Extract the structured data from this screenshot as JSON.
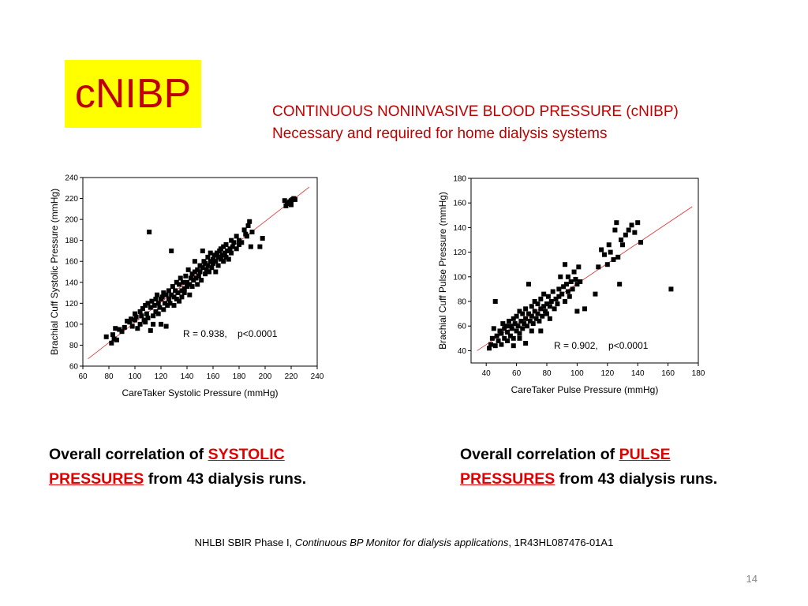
{
  "slide": {
    "title": "cNIBP",
    "subtitle_line1": "CONTINUOUS NONINVASIVE BLOOD PRESSURE (cNIBP)",
    "subtitle_line2": "Necessary and required for home dialysis systems",
    "caption_left": {
      "pre": "Overall correlation of ",
      "hl1": "SYSTOLIC",
      "hl2": "PRESSURES",
      "post": " from 43 dialysis runs."
    },
    "caption_right": {
      "pre": "Overall correlation of ",
      "hl1": "PULSE",
      "hl2": "PRESSURES",
      "post": " from 43 dialysis runs."
    },
    "footer": {
      "pre": "NHLBI SBIR Phase I, ",
      "italic": "Continuous BP Monitor for dialysis applications",
      "post": ", 1R43HL087476-01A1"
    },
    "page_number": "14"
  },
  "chart_data": [
    {
      "type": "scatter",
      "xlabel": "CareTaker Systolic Pressure (mmHg)",
      "ylabel": "Brachial Cuff Systolic Pressure (mmHg)",
      "xlim": [
        60,
        240
      ],
      "ylim": [
        60,
        240
      ],
      "xticks": [
        60,
        80,
        100,
        120,
        140,
        160,
        180,
        200,
        220,
        240
      ],
      "yticks": [
        60,
        80,
        100,
        120,
        140,
        160,
        180,
        200,
        220,
        240
      ],
      "annotation": "R = 0.938,    p<0.0001",
      "fit_line": {
        "x": [
          64,
          234
        ],
        "y": [
          67,
          231
        ]
      },
      "grid": false,
      "point_color": "#000000",
      "line_color": "#e03030",
      "points": [
        [
          78,
          88
        ],
        [
          82,
          82
        ],
        [
          84,
          86
        ],
        [
          83,
          90
        ],
        [
          85,
          96
        ],
        [
          88,
          95
        ],
        [
          86,
          85
        ],
        [
          90,
          93
        ],
        [
          92,
          97
        ],
        [
          94,
          103
        ],
        [
          96,
          102
        ],
        [
          97,
          105
        ],
        [
          98,
          98
        ],
        [
          100,
          104
        ],
        [
          100,
          110
        ],
        [
          101,
          107
        ],
        [
          102,
          96
        ],
        [
          104,
          100
        ],
        [
          104,
          112
        ],
        [
          105,
          108
        ],
        [
          106,
          115
        ],
        [
          107,
          104
        ],
        [
          108,
          102
        ],
        [
          108,
          118
        ],
        [
          109,
          110
        ],
        [
          110,
          106
        ],
        [
          110,
          120
        ],
        [
          111,
          188
        ],
        [
          112,
          116
        ],
        [
          112,
          94
        ],
        [
          113,
          122
        ],
        [
          114,
          108
        ],
        [
          114,
          100
        ],
        [
          115,
          118
        ],
        [
          116,
          112
        ],
        [
          116,
          124
        ],
        [
          117,
          128
        ],
        [
          118,
          110
        ],
        [
          118,
          120
        ],
        [
          119,
          116
        ],
        [
          120,
          124
        ],
        [
          120,
          100
        ],
        [
          121,
          126
        ],
        [
          122,
          114
        ],
        [
          122,
          130
        ],
        [
          123,
          120
        ],
        [
          124,
          98
        ],
        [
          124,
          128
        ],
        [
          125,
          118
        ],
        [
          126,
          124
        ],
        [
          126,
          132
        ],
        [
          127,
          120
        ],
        [
          128,
          170
        ],
        [
          128,
          128
        ],
        [
          129,
          136
        ],
        [
          130,
          126
        ],
        [
          130,
          118
        ],
        [
          131,
          132
        ],
        [
          132,
          140
        ],
        [
          132,
          124
        ],
        [
          133,
          130
        ],
        [
          134,
          122
        ],
        [
          134,
          138
        ],
        [
          135,
          144
        ],
        [
          136,
          132
        ],
        [
          136,
          126
        ],
        [
          137,
          140
        ],
        [
          138,
          134
        ],
        [
          138,
          130
        ],
        [
          139,
          146
        ],
        [
          140,
          136
        ],
        [
          140,
          140
        ],
        [
          141,
          152
        ],
        [
          142,
          138
        ],
        [
          142,
          128
        ],
        [
          143,
          144
        ],
        [
          144,
          148
        ],
        [
          144,
          136
        ],
        [
          145,
          142
        ],
        [
          146,
          150
        ],
        [
          146,
          160
        ],
        [
          147,
          144
        ],
        [
          148,
          138
        ],
        [
          148,
          152
        ],
        [
          149,
          146
        ],
        [
          150,
          156
        ],
        [
          150,
          150
        ],
        [
          151,
          142
        ],
        [
          152,
          154
        ],
        [
          152,
          170
        ],
        [
          153,
          160
        ],
        [
          154,
          148
        ],
        [
          154,
          158
        ],
        [
          155,
          152
        ],
        [
          156,
          164
        ],
        [
          156,
          156
        ],
        [
          157,
          150
        ],
        [
          158,
          160
        ],
        [
          158,
          168
        ],
        [
          159,
          154
        ],
        [
          160,
          162
        ],
        [
          160,
          158
        ],
        [
          161,
          166
        ],
        [
          162,
          150
        ],
        [
          162,
          160
        ],
        [
          163,
          168
        ],
        [
          164,
          164
        ],
        [
          164,
          156
        ],
        [
          165,
          170
        ],
        [
          166,
          162
        ],
        [
          166,
          172
        ],
        [
          167,
          166
        ],
        [
          168,
          160
        ],
        [
          168,
          174
        ],
        [
          169,
          168
        ],
        [
          170,
          176
        ],
        [
          170,
          164
        ],
        [
          171,
          170
        ],
        [
          172,
          162
        ],
        [
          173,
          172
        ],
        [
          174,
          180
        ],
        [
          174,
          168
        ],
        [
          175,
          174
        ],
        [
          176,
          178
        ],
        [
          178,
          184
        ],
        [
          178,
          172
        ],
        [
          180,
          180
        ],
        [
          180,
          176
        ],
        [
          182,
          178
        ],
        [
          184,
          190
        ],
        [
          185,
          186
        ],
        [
          186,
          184
        ],
        [
          187,
          194
        ],
        [
          188,
          198
        ],
        [
          189,
          174
        ],
        [
          190,
          188
        ],
        [
          196,
          174
        ],
        [
          198,
          182
        ],
        [
          215,
          218
        ],
        [
          216,
          213
        ],
        [
          217,
          215
        ],
        [
          218,
          216
        ],
        [
          219,
          217
        ],
        [
          220,
          214
        ],
        [
          221,
          219
        ],
        [
          222,
          220
        ],
        [
          223,
          219
        ],
        [
          220,
          218
        ]
      ]
    },
    {
      "type": "scatter",
      "xlabel": "CareTaker Pulse Pressure (mmHg)",
      "ylabel": "Brachial Cuff Pulse Pressure (mmHg)",
      "xlim": [
        30,
        180
      ],
      "ylim": [
        30,
        180
      ],
      "xticks": [
        40,
        60,
        80,
        100,
        120,
        140,
        160,
        180
      ],
      "yticks": [
        40,
        60,
        80,
        100,
        120,
        140,
        160,
        180
      ],
      "annotation": "R = 0.902,    p<0.0001",
      "fit_line": {
        "x": [
          34,
          176
        ],
        "y": [
          40,
          157
        ]
      },
      "grid": false,
      "point_color": "#000000",
      "line_color": "#e03030",
      "points": [
        [
          42,
          42
        ],
        [
          43,
          45
        ],
        [
          44,
          50
        ],
        [
          45,
          58
        ],
        [
          46,
          44
        ],
        [
          46,
          80
        ],
        [
          47,
          52
        ],
        [
          48,
          48
        ],
        [
          49,
          56
        ],
        [
          50,
          54
        ],
        [
          50,
          45
        ],
        [
          51,
          62
        ],
        [
          52,
          50
        ],
        [
          52,
          58
        ],
        [
          53,
          60
        ],
        [
          54,
          55
        ],
        [
          54,
          48
        ],
        [
          55,
          64
        ],
        [
          56,
          52
        ],
        [
          56,
          60
        ],
        [
          57,
          58
        ],
        [
          58,
          66
        ],
        [
          58,
          50
        ],
        [
          59,
          62
        ],
        [
          60,
          56
        ],
        [
          60,
          68
        ],
        [
          61,
          60
        ],
        [
          62,
          72
        ],
        [
          62,
          54
        ],
        [
          63,
          64
        ],
        [
          64,
          58
        ],
        [
          64,
          70
        ],
        [
          65,
          62
        ],
        [
          66,
          74
        ],
        [
          66,
          66
        ],
        [
          67,
          60
        ],
        [
          68,
          70
        ],
        [
          68,
          94
        ],
        [
          69,
          64
        ],
        [
          70,
          76
        ],
        [
          70,
          68
        ],
        [
          71,
          62
        ],
        [
          72,
          72
        ],
        [
          72,
          80
        ],
        [
          73,
          66
        ],
        [
          74,
          70
        ],
        [
          74,
          78
        ],
        [
          75,
          64
        ],
        [
          76,
          74
        ],
        [
          76,
          82
        ],
        [
          77,
          68
        ],
        [
          78,
          76
        ],
        [
          78,
          86
        ],
        [
          79,
          72
        ],
        [
          80,
          78
        ],
        [
          80,
          70
        ],
        [
          81,
          84
        ],
        [
          82,
          76
        ],
        [
          82,
          66
        ],
        [
          83,
          80
        ],
        [
          84,
          88
        ],
        [
          85,
          74
        ],
        [
          86,
          82
        ],
        [
          87,
          78
        ],
        [
          88,
          90
        ],
        [
          88,
          84
        ],
        [
          89,
          100
        ],
        [
          90,
          86
        ],
        [
          91,
          92
        ],
        [
          92,
          80
        ],
        [
          92,
          110
        ],
        [
          93,
          94
        ],
        [
          94,
          88
        ],
        [
          94,
          100
        ],
        [
          95,
          84
        ],
        [
          96,
          96
        ],
        [
          97,
          90
        ],
        [
          98,
          104
        ],
        [
          99,
          98
        ],
        [
          100,
          94
        ],
        [
          100,
          72
        ],
        [
          101,
          108
        ],
        [
          102,
          96
        ],
        [
          105,
          74
        ],
        [
          112,
          86
        ],
        [
          114,
          108
        ],
        [
          116,
          122
        ],
        [
          118,
          118
        ],
        [
          120,
          110
        ],
        [
          121,
          126
        ],
        [
          122,
          120
        ],
        [
          124,
          114
        ],
        [
          125,
          138
        ],
        [
          126,
          144
        ],
        [
          127,
          116
        ],
        [
          128,
          94
        ],
        [
          129,
          130
        ],
        [
          130,
          126
        ],
        [
          132,
          134
        ],
        [
          134,
          138
        ],
        [
          136,
          142
        ],
        [
          138,
          136
        ],
        [
          140,
          144
        ],
        [
          142,
          128
        ],
        [
          162,
          90
        ],
        [
          76,
          56
        ],
        [
          70,
          56
        ],
        [
          66,
          46
        ],
        [
          62,
          50
        ],
        [
          58,
          44
        ]
      ]
    }
  ]
}
